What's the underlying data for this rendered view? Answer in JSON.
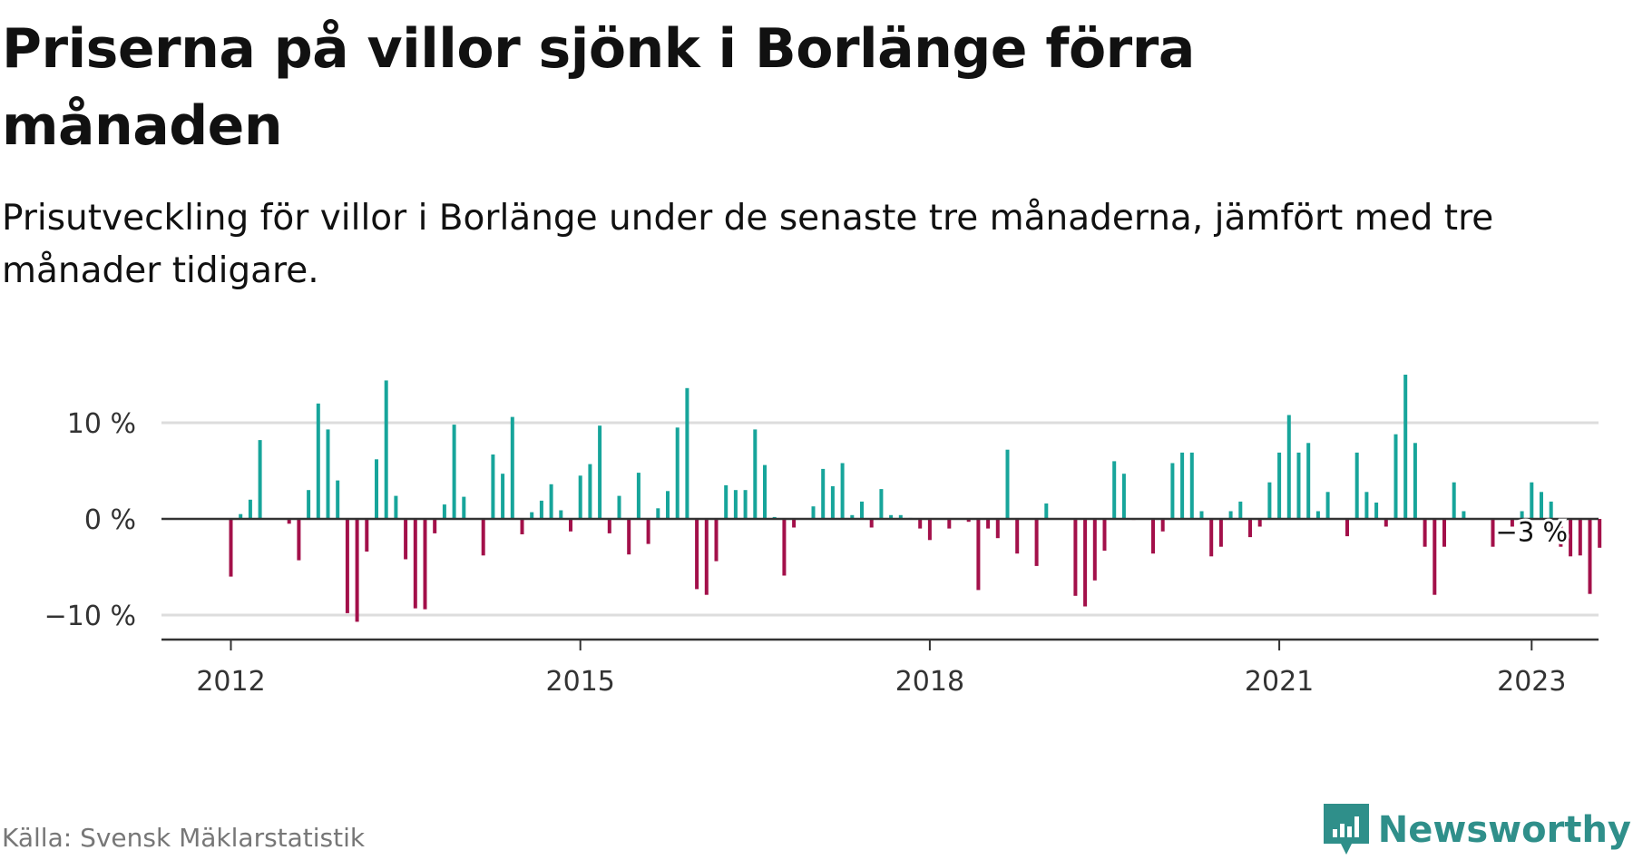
{
  "title": "Priserna på villor sjönk i Borlänge förra månaden",
  "subtitle": "Prisutveckling för villor i Borlänge under de senaste tre månaderna, jämfört med tre månader tidigare.",
  "source": "Källa: Svensk Mäklarstatistik",
  "brand": "Newsworthy",
  "colors": {
    "positive": "#17a59b",
    "negative": "#a3104a",
    "brand": "#2f8f8a",
    "axis": "#333333",
    "grid": "#dddddd"
  },
  "chart_data": {
    "type": "bar",
    "x_start": "2012-01",
    "x_end": "2023-03",
    "x_ticks": [
      {
        "date": "2012-01",
        "label": "2012"
      },
      {
        "date": "2015-01",
        "label": "2015"
      },
      {
        "date": "2018-01",
        "label": "2018"
      },
      {
        "date": "2021-01",
        "label": "2021"
      },
      {
        "date": "2023-03",
        "label": "2023"
      }
    ],
    "y_ticks": [
      {
        "value": 10,
        "label": "10 %"
      },
      {
        "value": 0,
        "label": "0 %"
      },
      {
        "value": -10,
        "label": "−10 %"
      }
    ],
    "ylim": [
      -12.5,
      15
    ],
    "grid": true,
    "annotation": {
      "date": "2023-03",
      "label": "−3 %"
    },
    "values": [
      -6,
      0.5,
      2,
      8.2,
      0,
      0,
      -0.5,
      -4.3,
      3,
      12,
      9.3,
      4,
      -9.8,
      -10.7,
      -3.4,
      6.2,
      14.4,
      2.4,
      -4.2,
      -9.3,
      -9.4,
      -1.5,
      1.5,
      9.8,
      2.3,
      0,
      -3.8,
      6.7,
      4.7,
      10.6,
      -1.6,
      0.7,
      1.9,
      3.6,
      0.9,
      -1.3,
      4.5,
      5.7,
      9.7,
      -1.5,
      2.4,
      -3.7,
      4.8,
      -2.6,
      1.1,
      2.9,
      9.5,
      13.6,
      -7.3,
      -7.9,
      -4.4,
      3.5,
      3,
      3,
      9.3,
      5.6,
      0.2,
      -5.9,
      -0.9,
      0,
      1.3,
      5.2,
      3.4,
      5.8,
      0.4,
      1.8,
      -0.9,
      3.1,
      0.4,
      0.4,
      0.1,
      -1,
      -2.2,
      0,
      -1,
      0,
      -0.3,
      -7.4,
      -1,
      -2,
      7.2,
      -3.6,
      0,
      -4.9,
      1.6,
      0,
      0,
      -8,
      -9.1,
      -6.4,
      -3.3,
      6,
      4.7,
      -0.1,
      0,
      -3.6,
      -1.3,
      5.8,
      6.9,
      6.9,
      0.8,
      -3.9,
      -2.9,
      0.8,
      1.8,
      -1.9,
      -0.8,
      3.8,
      6.9,
      10.8,
      6.9,
      7.9,
      0.8,
      2.8,
      0,
      -1.8,
      6.9,
      2.8,
      1.7,
      -0.8,
      8.8,
      15,
      7.9,
      -2.9,
      -7.9,
      -2.9,
      3.8,
      0.8,
      0,
      0,
      -2.9,
      0,
      -0.8,
      0.8,
      3.8,
      2.8,
      1.8,
      -2.9,
      -3.9,
      -3.8,
      -7.8,
      -3
    ]
  }
}
